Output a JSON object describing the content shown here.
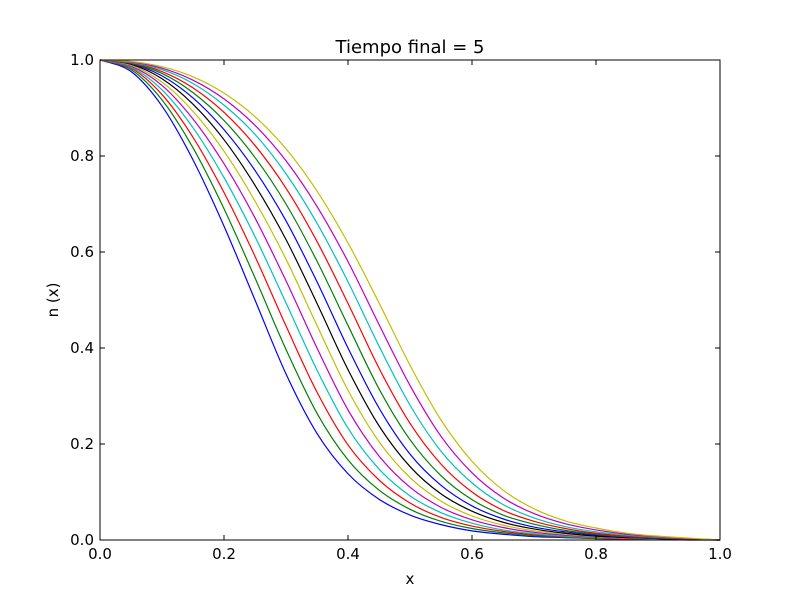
{
  "chart_data": {
    "type": "line",
    "title": "Tiempo final = 5",
    "xlabel": "x",
    "ylabel": "n (x)",
    "xlim": [
      0.0,
      1.0
    ],
    "ylim": [
      0.0,
      1.0
    ],
    "xticks": [
      "0.0",
      "0.2",
      "0.4",
      "0.6",
      "0.8",
      "1.0"
    ],
    "yticks": [
      "0.0",
      "0.2",
      "0.4",
      "0.6",
      "0.8",
      "1.0"
    ],
    "grid": false,
    "legend": "none",
    "x": [
      0.0,
      0.05,
      0.1,
      0.15,
      0.2,
      0.25,
      0.3,
      0.35,
      0.4,
      0.45,
      0.5,
      0.55,
      0.6,
      0.65,
      0.7,
      0.75,
      0.8,
      0.85,
      0.9,
      0.95,
      1.0
    ],
    "series": [
      {
        "color": "#0000ff",
        "values": [
          1.0,
          0.976,
          0.904,
          0.792,
          0.654,
          0.5,
          0.346,
          0.222,
          0.138,
          0.085,
          0.052,
          0.032,
          0.019,
          0.012,
          0.007,
          0.005,
          0.003,
          0.002,
          0.001,
          0.0,
          0.0
        ]
      },
      {
        "color": "#008000",
        "values": [
          1.0,
          0.98,
          0.917,
          0.817,
          0.69,
          0.546,
          0.397,
          0.264,
          0.167,
          0.104,
          0.064,
          0.039,
          0.024,
          0.015,
          0.009,
          0.006,
          0.003,
          0.002,
          0.001,
          0.001,
          0.0
        ]
      },
      {
        "color": "#ff0000",
        "values": [
          1.0,
          0.983,
          0.928,
          0.839,
          0.724,
          0.591,
          0.446,
          0.308,
          0.198,
          0.125,
          0.077,
          0.047,
          0.029,
          0.018,
          0.011,
          0.007,
          0.004,
          0.002,
          0.001,
          0.001,
          0.0
        ]
      },
      {
        "color": "#00bfbf",
        "values": [
          1.0,
          0.985,
          0.938,
          0.859,
          0.755,
          0.632,
          0.494,
          0.354,
          0.233,
          0.148,
          0.092,
          0.057,
          0.035,
          0.021,
          0.013,
          0.008,
          0.005,
          0.003,
          0.002,
          0.001,
          0.0
        ]
      },
      {
        "color": "#bf00bf",
        "values": [
          1.0,
          0.987,
          0.947,
          0.877,
          0.784,
          0.671,
          0.54,
          0.4,
          0.271,
          0.175,
          0.11,
          0.068,
          0.042,
          0.026,
          0.016,
          0.01,
          0.006,
          0.003,
          0.002,
          0.001,
          0.0
        ]
      },
      {
        "color": "#bfbf00",
        "values": [
          1.0,
          0.989,
          0.954,
          0.893,
          0.81,
          0.706,
          0.585,
          0.447,
          0.312,
          0.205,
          0.13,
          0.081,
          0.05,
          0.031,
          0.019,
          0.012,
          0.007,
          0.004,
          0.002,
          0.001,
          0.0
        ]
      },
      {
        "color": "#000000",
        "values": [
          1.0,
          0.991,
          0.961,
          0.908,
          0.834,
          0.739,
          0.626,
          0.493,
          0.355,
          0.238,
          0.153,
          0.096,
          0.06,
          0.037,
          0.023,
          0.014,
          0.008,
          0.005,
          0.003,
          0.001,
          0.0
        ]
      },
      {
        "color": "#0000ff",
        "values": [
          1.0,
          0.992,
          0.967,
          0.921,
          0.855,
          0.77,
          0.665,
          0.538,
          0.4,
          0.275,
          0.179,
          0.114,
          0.071,
          0.044,
          0.027,
          0.017,
          0.01,
          0.006,
          0.003,
          0.002,
          0.0
        ]
      },
      {
        "color": "#008000",
        "values": [
          1.0,
          0.993,
          0.972,
          0.932,
          0.874,
          0.797,
          0.7,
          0.581,
          0.447,
          0.315,
          0.209,
          0.134,
          0.084,
          0.052,
          0.033,
          0.02,
          0.012,
          0.007,
          0.004,
          0.002,
          0.0
        ]
      },
      {
        "color": "#ff0000",
        "values": [
          1.0,
          0.994,
          0.976,
          0.942,
          0.891,
          0.822,
          0.733,
          0.622,
          0.493,
          0.358,
          0.243,
          0.158,
          0.1,
          0.062,
          0.039,
          0.024,
          0.014,
          0.008,
          0.005,
          0.002,
          0.0
        ]
      },
      {
        "color": "#00bfbf",
        "values": [
          1.0,
          0.995,
          0.98,
          0.951,
          0.906,
          0.845,
          0.763,
          0.66,
          0.538,
          0.404,
          0.281,
          0.185,
          0.119,
          0.074,
          0.046,
          0.028,
          0.017,
          0.01,
          0.006,
          0.003,
          0.0
        ]
      },
      {
        "color": "#bf00bf",
        "values": [
          1.0,
          0.996,
          0.983,
          0.958,
          0.919,
          0.864,
          0.79,
          0.695,
          0.58,
          0.449,
          0.322,
          0.216,
          0.14,
          0.088,
          0.055,
          0.034,
          0.021,
          0.012,
          0.007,
          0.003,
          0.0
        ]
      },
      {
        "color": "#bfbf00",
        "values": [
          1.0,
          0.997,
          0.986,
          0.965,
          0.931,
          0.882,
          0.815,
          0.727,
          0.619,
          0.494,
          0.364,
          0.25,
          0.164,
          0.104,
          0.065,
          0.04,
          0.025,
          0.014,
          0.008,
          0.004,
          0.0
        ]
      }
    ]
  }
}
